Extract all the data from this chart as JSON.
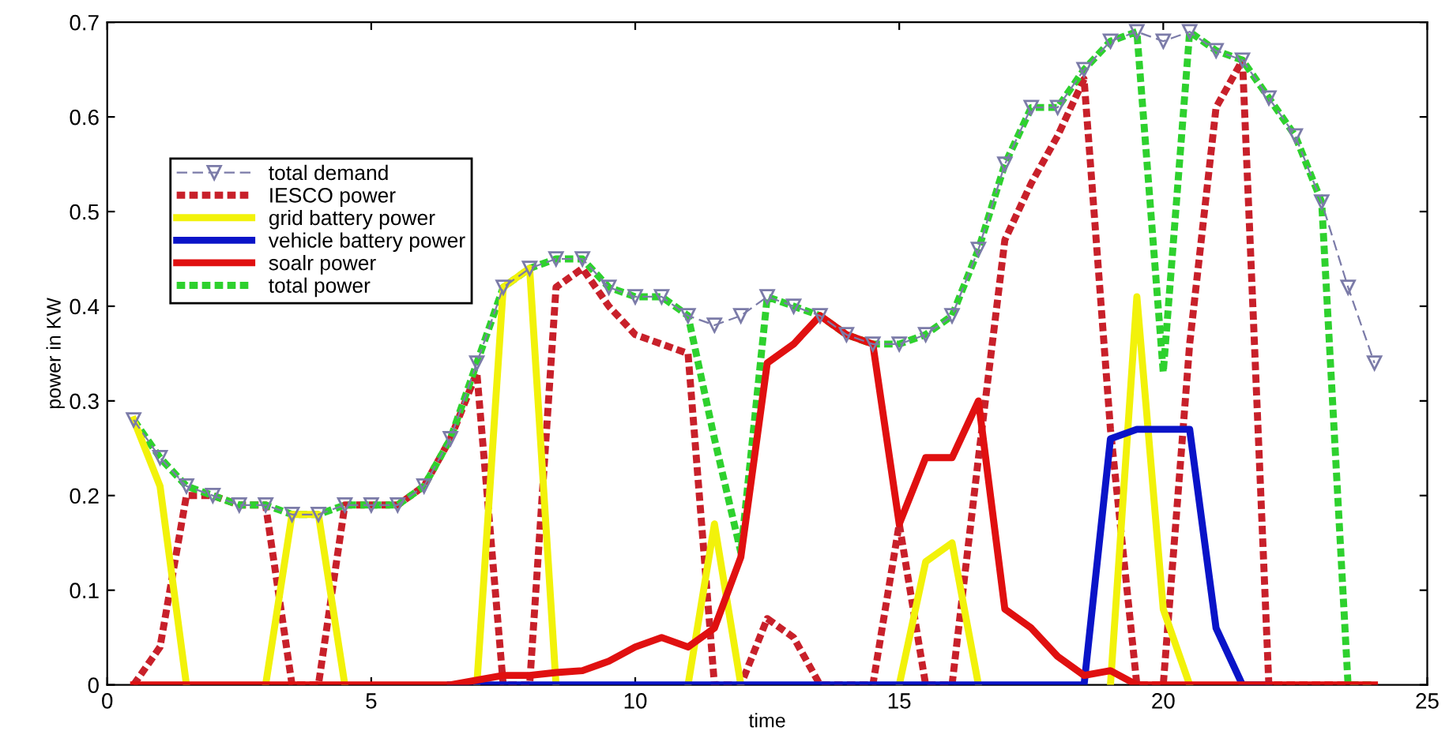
{
  "chart_data": {
    "type": "line",
    "xlabel": "time",
    "ylabel": "power in KW",
    "x": [
      0.5,
      1,
      1.5,
      2,
      2.5,
      3,
      3.5,
      4,
      4.5,
      5,
      5.5,
      6,
      6.5,
      7,
      7.5,
      8,
      8.5,
      9,
      9.5,
      10,
      10.5,
      11,
      11.5,
      12,
      12.5,
      13,
      13.5,
      14,
      14.5,
      15,
      15.5,
      16,
      16.5,
      17,
      17.5,
      18,
      18.5,
      19,
      19.5,
      20,
      20.5,
      21,
      21.5,
      22,
      22.5,
      23,
      23.5,
      24
    ],
    "series": [
      {
        "name": "total demand",
        "color": "#7b7ba8",
        "marker": "triangle",
        "line_style": "dashed",
        "values": [
          0.28,
          0.24,
          0.21,
          0.2,
          0.19,
          0.19,
          0.18,
          0.18,
          0.19,
          0.19,
          0.19,
          0.21,
          0.26,
          0.34,
          0.42,
          0.44,
          0.45,
          0.45,
          0.42,
          0.41,
          0.41,
          0.39,
          0.38,
          0.39,
          0.41,
          0.4,
          0.39,
          0.37,
          0.36,
          0.36,
          0.37,
          0.39,
          0.46,
          0.55,
          0.61,
          0.61,
          0.65,
          0.68,
          0.69,
          0.68,
          0.69,
          0.67,
          0.66,
          0.62,
          0.58,
          0.51,
          0.42,
          0.34
        ]
      },
      {
        "name": "IESCO power",
        "color": "#c8202a",
        "marker": "none",
        "line_style": "dashed",
        "values": [
          0,
          0.04,
          0.2,
          0.2,
          0.19,
          0.19,
          0,
          0,
          0.19,
          0.19,
          0.19,
          0.21,
          0.26,
          0.33,
          0,
          0,
          0.42,
          0.44,
          0.4,
          0.37,
          0.36,
          0.35,
          0,
          0,
          0.07,
          0.05,
          0,
          0,
          0,
          0.17,
          0,
          0,
          0.24,
          0.47,
          0.53,
          0.58,
          0.64,
          0.27,
          0,
          0,
          0.36,
          0.61,
          0.66,
          0,
          0,
          0,
          0,
          0
        ]
      },
      {
        "name": "grid battery power",
        "color": "#f2f20a",
        "marker": "none",
        "line_style": "solid",
        "values": [
          0.28,
          0.21,
          0,
          null,
          null,
          0,
          0.18,
          0.18,
          0,
          null,
          null,
          null,
          null,
          0,
          0.42,
          0.44,
          0,
          null,
          null,
          null,
          null,
          0,
          0.17,
          0,
          null,
          null,
          null,
          null,
          null,
          0,
          0.13,
          0.15,
          0,
          null,
          null,
          null,
          null,
          0,
          0.41,
          0.08,
          0,
          null,
          null,
          null,
          null,
          null,
          null,
          null
        ]
      },
      {
        "name": "vehicle battery power",
        "color": "#0a14c8",
        "marker": "none",
        "line_style": "solid",
        "values": [
          null,
          null,
          null,
          null,
          null,
          null,
          null,
          null,
          null,
          null,
          null,
          null,
          0,
          0,
          0,
          0,
          0,
          0,
          0,
          0,
          0,
          0,
          0,
          0,
          0,
          0,
          0,
          0,
          0,
          0,
          0,
          0,
          0,
          0,
          0,
          0,
          0,
          0.26,
          0.27,
          0.27,
          0.27,
          0.06,
          0,
          0,
          null,
          null,
          null,
          null
        ]
      },
      {
        "name": "soalr power",
        "color": "#e01010",
        "marker": "none",
        "line_style": "solid",
        "values": [
          0,
          0,
          0,
          0,
          0,
          0,
          0,
          0,
          0,
          0,
          0,
          0,
          0,
          0.005,
          0.01,
          0.01,
          0.013,
          0.015,
          0.025,
          0.04,
          0.05,
          0.04,
          0.06,
          0.135,
          0.34,
          0.36,
          0.39,
          0.37,
          0.36,
          0.17,
          0.24,
          0.24,
          0.3,
          0.08,
          0.06,
          0.03,
          0.01,
          0.015,
          0,
          0,
          0,
          0,
          0,
          0,
          0,
          0,
          0,
          0
        ]
      },
      {
        "name": "total power",
        "color": "#2ed12e",
        "marker": "none",
        "line_style": "dashed",
        "values": [
          0.28,
          0.24,
          0.21,
          0.2,
          0.19,
          0.19,
          0.18,
          0.18,
          0.19,
          0.19,
          0.19,
          0.21,
          0.26,
          0.34,
          0.42,
          0.44,
          0.45,
          0.45,
          0.42,
          0.41,
          0.41,
          0.39,
          0.26,
          0.14,
          0.41,
          0.4,
          0.39,
          0.37,
          0.36,
          0.36,
          0.37,
          0.39,
          0.46,
          0.55,
          0.61,
          0.61,
          0.65,
          0.68,
          0.69,
          0.33,
          0.69,
          0.67,
          0.66,
          0.62,
          0.58,
          0.51,
          0,
          0
        ]
      }
    ],
    "xlim": [
      0,
      25
    ],
    "xticks": [
      0,
      5,
      10,
      15,
      20,
      25
    ],
    "ylim": [
      0,
      0.7
    ],
    "yticks": [
      0,
      0.1,
      0.2,
      0.3,
      0.4,
      0.5,
      0.6,
      0.7
    ],
    "grid": false,
    "legend": "top left"
  }
}
